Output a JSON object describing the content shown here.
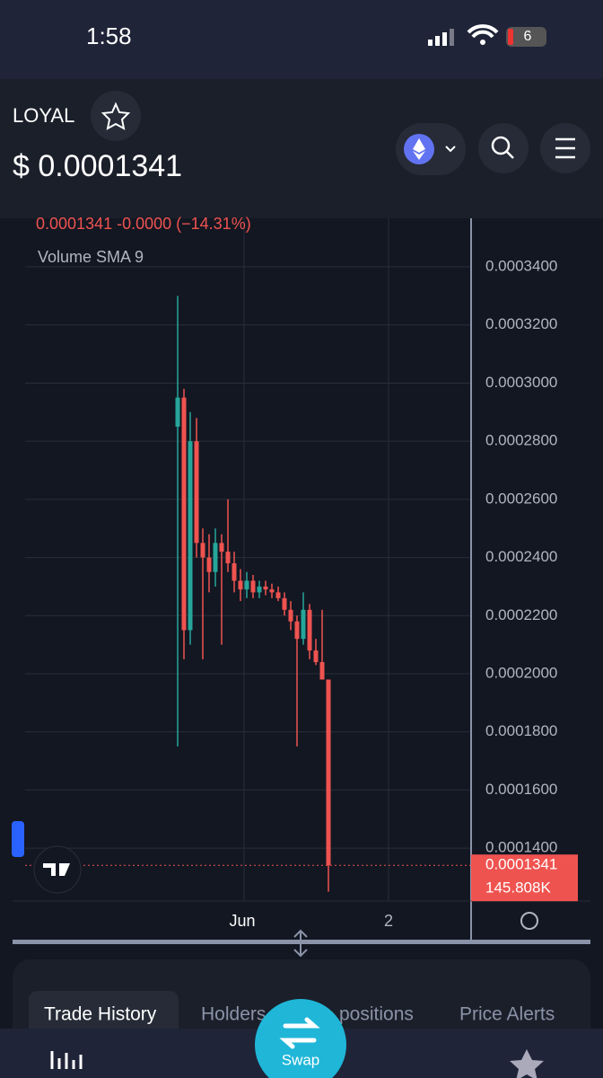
{
  "status_bar": {
    "time": "1:58",
    "battery": "6"
  },
  "header": {
    "token": "LOYAL",
    "price": "$ 0.0001341"
  },
  "chart": {
    "type": "candlestick",
    "legend_line": "0.0001341 -0.0000 (−14.31%)",
    "indicator": "Volume SMA 9",
    "up_color": "#26a69a",
    "down_color": "#ef5350",
    "ylim": [
      0.0001218,
      0.0003567
    ],
    "yticks": [
      {
        "value": 0.00014,
        "label": "0.0001400"
      },
      {
        "value": 0.00016,
        "label": "0.0001600"
      },
      {
        "value": 0.00018,
        "label": "0.0001800"
      },
      {
        "value": 0.0002,
        "label": "0.0002000"
      },
      {
        "value": 0.00022,
        "label": "0.0002200"
      },
      {
        "value": 0.00024,
        "label": "0.0002400"
      },
      {
        "value": 0.00026,
        "label": "0.0002600"
      },
      {
        "value": 0.00028,
        "label": "0.0002800"
      },
      {
        "value": 0.0003,
        "label": "0.0003000"
      },
      {
        "value": 0.00032,
        "label": "0.0003200"
      },
      {
        "value": 0.00034,
        "label": "0.0003400"
      }
    ],
    "xtick_labels": [
      "Jun",
      "2"
    ],
    "last_price": {
      "value": 0.0001341,
      "label": "0.0001341"
    },
    "volume_label": "145.808K",
    "candles": [
      {
        "open": 0.000285,
        "high": 0.00033,
        "low": 0.000175,
        "close": 0.000295
      },
      {
        "open": 0.000295,
        "high": 0.000298,
        "low": 0.000205,
        "close": 0.000215
      },
      {
        "open": 0.000215,
        "high": 0.00029,
        "low": 0.00021,
        "close": 0.00028
      },
      {
        "open": 0.00028,
        "high": 0.000288,
        "low": 0.00024,
        "close": 0.000245
      },
      {
        "open": 0.000245,
        "high": 0.00025,
        "low": 0.000205,
        "close": 0.00024
      },
      {
        "open": 0.00024,
        "high": 0.000248,
        "low": 0.000228,
        "close": 0.000235
      },
      {
        "open": 0.000235,
        "high": 0.00025,
        "low": 0.00023,
        "close": 0.000245
      },
      {
        "open": 0.000245,
        "high": 0.000248,
        "low": 0.00021,
        "close": 0.000242
      },
      {
        "open": 0.000242,
        "high": 0.00026,
        "low": 0.000235,
        "close": 0.000238
      },
      {
        "open": 0.000238,
        "high": 0.000242,
        "low": 0.000228,
        "close": 0.000232
      },
      {
        "open": 0.000232,
        "high": 0.000236,
        "low": 0.000225,
        "close": 0.000229
      },
      {
        "open": 0.000229,
        "high": 0.000235,
        "low": 0.000226,
        "close": 0.000232
      },
      {
        "open": 0.000232,
        "high": 0.000234,
        "low": 0.000226,
        "close": 0.000228
      },
      {
        "open": 0.000228,
        "high": 0.000232,
        "low": 0.000226,
        "close": 0.00023
      },
      {
        "open": 0.00023,
        "high": 0.000232,
        "low": 0.000227,
        "close": 0.000229
      },
      {
        "open": 0.000229,
        "high": 0.000231,
        "low": 0.000226,
        "close": 0.000228
      },
      {
        "open": 0.000228,
        "high": 0.00023,
        "low": 0.000225,
        "close": 0.000226
      },
      {
        "open": 0.000226,
        "high": 0.000228,
        "low": 0.00022,
        "close": 0.000222
      },
      {
        "open": 0.000222,
        "high": 0.000225,
        "low": 0.000215,
        "close": 0.000218
      },
      {
        "open": 0.000218,
        "high": 0.00022,
        "low": 0.000175,
        "close": 0.000212
      },
      {
        "open": 0.000212,
        "high": 0.000228,
        "low": 0.00021,
        "close": 0.000222
      },
      {
        "open": 0.000222,
        "high": 0.000224,
        "low": 0.000205,
        "close": 0.000208
      },
      {
        "open": 0.000208,
        "high": 0.000212,
        "low": 0.000203,
        "close": 0.000204
      },
      {
        "open": 0.000204,
        "high": 0.000222,
        "low": 0.000198,
        "close": 0.000198
      },
      {
        "open": 0.000198,
        "high": 0.000198,
        "low": 0.000125,
        "close": 0.0001341
      }
    ]
  },
  "tabs": [
    "Trade History",
    "Holders",
    "positions",
    "Price Alerts"
  ],
  "swap": "Swap"
}
